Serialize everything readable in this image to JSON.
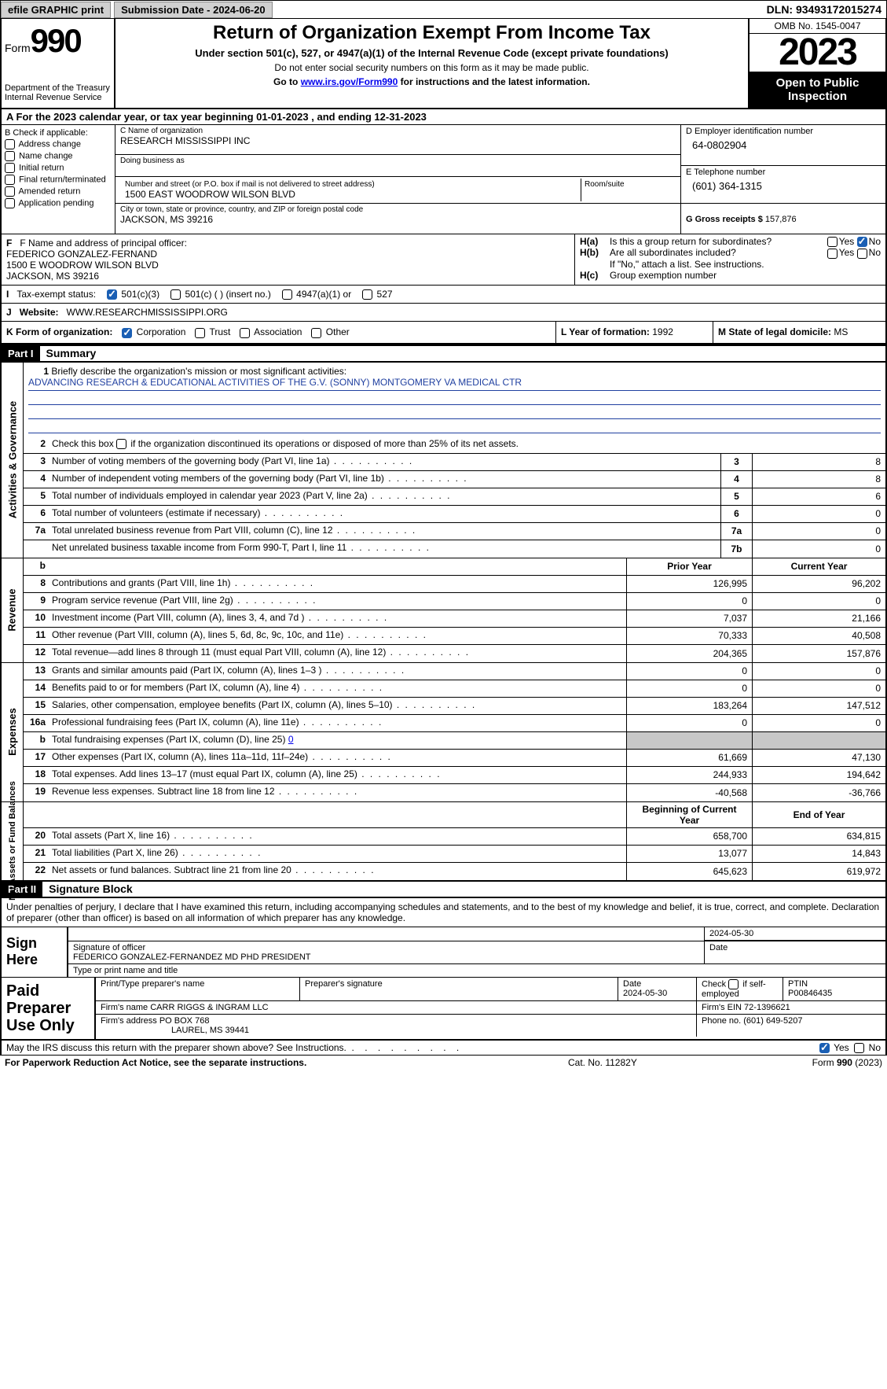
{
  "topbar": {
    "efile_btn": "efile GRAPHIC print",
    "submission": "Submission Date - 2024-06-20",
    "dln": "DLN: 93493172015274"
  },
  "header": {
    "form_prefix": "Form",
    "form_number": "990",
    "dept": "Department of the Treasury",
    "irs": "Internal Revenue Service",
    "title": "Return of Organization Exempt From Income Tax",
    "sub1": "Under section 501(c), 527, or 4947(a)(1) of the Internal Revenue Code (except private foundations)",
    "sub2": "Do not enter social security numbers on this form as it may be made public.",
    "sub3a": "Go to ",
    "sub3_link": "www.irs.gov/Form990",
    "sub3b": " for instructions and the latest information.",
    "omb": "OMB No. 1545-0047",
    "year": "2023",
    "open": "Open to Public Inspection"
  },
  "rowA": {
    "prefix": "A",
    "text": "  For the 2023 calendar year, or tax year beginning 01-01-2023    , and ending 12-31-2023"
  },
  "colB": {
    "header": "B Check if applicable:",
    "opts": [
      "Address change",
      "Name change",
      "Initial return",
      "Final return/terminated",
      "Amended return",
      "Application pending"
    ]
  },
  "colC": {
    "c_label": "C Name of organization",
    "org": "RESEARCH MISSISSIPPI INC",
    "dba_label": "Doing business as",
    "addr_label": "Number and street (or P.O. box if mail is not delivered to street address)",
    "addr": "1500 EAST WOODROW WILSON BLVD",
    "room_label": "Room/suite",
    "city_label": "City or town, state or province, country, and ZIP or foreign postal code",
    "city": "JACKSON, MS   39216"
  },
  "colDE": {
    "d_label": "D Employer identification number",
    "ein": "64-0802904",
    "e_label": "E Telephone number",
    "phone": "(601) 364-1315",
    "g_label": "G Gross receipts $ ",
    "g_val": "157,876"
  },
  "colF": {
    "label": "F   Name and address of principal officer:",
    "name": "FEDERICO GONZALEZ-FERNAND",
    "addr": "1500 E WOODROW WILSON BLVD",
    "city": "JACKSON, MS   39216"
  },
  "colH": {
    "ha_label": "H(a)",
    "ha_text": "Is this a group return for subordinates?",
    "hb_label": "H(b)",
    "hb_text": "Are all subordinates included?",
    "hb_note": "If \"No,\" attach a list. See instructions.",
    "hc_label": "H(c)",
    "hc_text": "Group exemption number ",
    "yes": "Yes",
    "no": "No"
  },
  "rowI": {
    "label": "I",
    "text": "Tax-exempt status:",
    "o1": "501(c)(3)",
    "o2": "501(c) (   ) (insert no.)",
    "o3": "4947(a)(1) or",
    "o4": "527"
  },
  "rowJ": {
    "label": "J",
    "text": "Website: ",
    "val": "WWW.RESEARCHMISSISSIPPI.ORG"
  },
  "rowK": {
    "label": "K Form of organization:",
    "o1": "Corporation",
    "o2": "Trust",
    "o3": "Association",
    "o4": "Other",
    "l_label": "L Year of formation: ",
    "l_val": "1992",
    "m_label": "M State of legal domicile: ",
    "m_val": "MS"
  },
  "part1": {
    "bar": "Part I",
    "title": "Summary"
  },
  "gov": {
    "vtitle": "Activities & Governance",
    "l1_num": "1",
    "l1": "Briefly describe the organization's mission or most significant activities:",
    "mission": "ADVANCING RESEARCH & EDUCATIONAL ACTIVITIES OF THE G.V. (SONNY) MONTGOMERY VA MEDICAL CTR",
    "l2_num": "2",
    "l2": "Check this box        if the organization discontinued its operations or disposed of more than 25% of its net assets.",
    "l3_num": "3",
    "l3": "Number of voting members of the governing body (Part VI, line 1a)",
    "l3n": "3",
    "l3v": "8",
    "l4_num": "4",
    "l4": "Number of independent voting members of the governing body (Part VI, line 1b)",
    "l4n": "4",
    "l4v": "8",
    "l5_num": "5",
    "l5": "Total number of individuals employed in calendar year 2023 (Part V, line 2a)",
    "l5n": "5",
    "l5v": "6",
    "l6_num": "6",
    "l6": "Total number of volunteers (estimate if necessary)",
    "l6n": "6",
    "l6v": "0",
    "l7a_num": "7a",
    "l7a": "Total unrelated business revenue from Part VIII, column (C), line 12",
    "l7an": "7a",
    "l7av": "0",
    "l7b": "Net unrelated business taxable income from Form 990-T, Part I, line 11",
    "l7bn": "7b",
    "l7bv": "0"
  },
  "cols": {
    "prior": "Prior Year",
    "current": "Current Year",
    "beg": "Beginning of Current Year",
    "end": "End of Year"
  },
  "rev": {
    "vtitle": "Revenue",
    "rows": [
      {
        "n": "8",
        "d": "Contributions and grants (Part VIII, line 1h)",
        "p": "126,995",
        "c": "96,202"
      },
      {
        "n": "9",
        "d": "Program service revenue (Part VIII, line 2g)",
        "p": "0",
        "c": "0"
      },
      {
        "n": "10",
        "d": "Investment income (Part VIII, column (A), lines 3, 4, and 7d )",
        "p": "7,037",
        "c": "21,166"
      },
      {
        "n": "11",
        "d": "Other revenue (Part VIII, column (A), lines 5, 6d, 8c, 9c, 10c, and 11e)",
        "p": "70,333",
        "c": "40,508"
      },
      {
        "n": "12",
        "d": "Total revenue—add lines 8 through 11 (must equal Part VIII, column (A), line 12)",
        "p": "204,365",
        "c": "157,876"
      }
    ]
  },
  "exp": {
    "vtitle": "Expenses",
    "rows": [
      {
        "n": "13",
        "d": "Grants and similar amounts paid (Part IX, column (A), lines 1–3 )",
        "p": "0",
        "c": "0"
      },
      {
        "n": "14",
        "d": "Benefits paid to or for members (Part IX, column (A), line 4)",
        "p": "0",
        "c": "0"
      },
      {
        "n": "15",
        "d": "Salaries, other compensation, employee benefits (Part IX, column (A), lines 5–10)",
        "p": "183,264",
        "c": "147,512"
      },
      {
        "n": "16a",
        "d": "Professional fundraising fees (Part IX, column (A), line 11e)",
        "p": "0",
        "c": "0"
      },
      {
        "n": "b",
        "d": "Total fundraising expenses (Part IX, column (D), line 25) ",
        "fund": "0",
        "grey": true
      },
      {
        "n": "17",
        "d": "Other expenses (Part IX, column (A), lines 11a–11d, 11f–24e)",
        "p": "61,669",
        "c": "47,130"
      },
      {
        "n": "18",
        "d": "Total expenses. Add lines 13–17 (must equal Part IX, column (A), line 25)",
        "p": "244,933",
        "c": "194,642"
      },
      {
        "n": "19",
        "d": "Revenue less expenses. Subtract line 18 from line 12",
        "p": "-40,568",
        "c": "-36,766"
      }
    ]
  },
  "net": {
    "vtitle": "Net Assets or Fund Balances",
    "rows": [
      {
        "n": "20",
        "d": "Total assets (Part X, line 16)",
        "p": "658,700",
        "c": "634,815"
      },
      {
        "n": "21",
        "d": "Total liabilities (Part X, line 26)",
        "p": "13,077",
        "c": "14,843"
      },
      {
        "n": "22",
        "d": "Net assets or fund balances. Subtract line 21 from line 20",
        "p": "645,623",
        "c": "619,972"
      }
    ]
  },
  "part2": {
    "bar": "Part II",
    "title": "Signature Block"
  },
  "sigtext": "Under penalties of perjury, I declare that I have examined this return, including accompanying schedules and statements, and to the best of my knowledge and belief, it is true, correct, and complete. Declaration of preparer (other than officer) is based on all information of which preparer has any knowledge.",
  "sign": {
    "left": "Sign Here",
    "date": "2024-05-30",
    "sig_label": "Signature of officer",
    "officer": "FEDERICO GONZALEZ-FERNANDEZ MD PHD  PRESIDENT",
    "type_label": "Type or print name and title",
    "date_label": "Date"
  },
  "paid": {
    "left": "Paid Preparer Use Only",
    "h1": "Print/Type preparer's name",
    "h2": "Preparer's signature",
    "h3": "Date",
    "h3v": "2024-05-30",
    "h4a": "Check",
    "h4b": "if self-employed",
    "h5": "PTIN",
    "h5v": "P00846435",
    "firm_label": "Firm's name    ",
    "firm": "CARR RIGGS & INGRAM LLC",
    "ein_label": "Firm's EIN  ",
    "ein": "72-1396621",
    "addr_label": "Firm's address ",
    "addr1": "PO BOX 768",
    "addr2": "LAUREL, MS   39441",
    "phone_label": "Phone no. ",
    "phone": "(601) 649-5207"
  },
  "footer": {
    "q": "May the IRS discuss this return with the preparer shown above? See Instructions.",
    "yes": "Yes",
    "no": "No"
  },
  "bottom": {
    "l": "For Paperwork Reduction Act Notice, see the separate instructions.",
    "m": "Cat. No. 11282Y",
    "r_a": "Form ",
    "r_b": "990",
    "r_c": " (2023)"
  }
}
